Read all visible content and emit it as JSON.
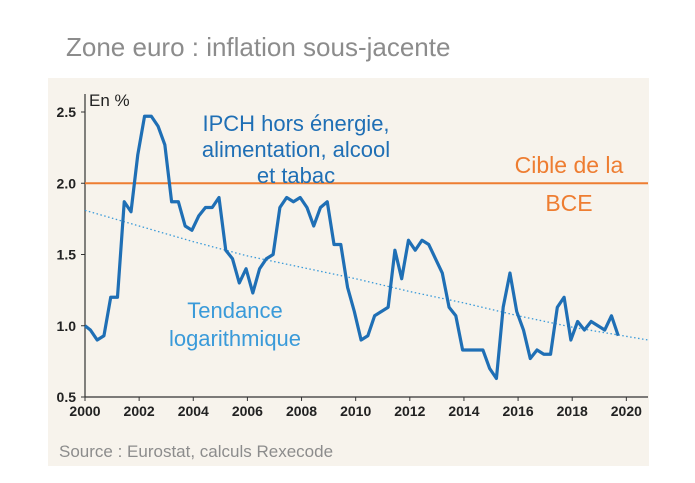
{
  "title": "Zone euro : inflation sous-jacente",
  "source": "Source : Eurostat, calculs Rexecode",
  "colors": {
    "series": "#1f6fb5",
    "trend": "#3a9ad9",
    "target": "#ee7d31",
    "panel": "#f7f3ec"
  },
  "chart_data": {
    "type": "line",
    "ylabel": "En %",
    "xlim": [
      2000,
      2020.8
    ],
    "ylim": [
      0.5,
      2.5
    ],
    "xticks": [
      "2000",
      "2002",
      "2004",
      "2006",
      "2008",
      "2010",
      "2012",
      "2014",
      "2016",
      "2018",
      "2020"
    ],
    "yticks": [
      "0.5",
      "1.0",
      "1.5",
      "2.0",
      "2.5"
    ],
    "annotations": {
      "series_label": [
        "IPCH hors énergie,",
        "alimentation, alcool",
        "et tabac"
      ],
      "target_label": [
        "Cible de la",
        "BCE"
      ],
      "trend_label": [
        "Tendance",
        "logarithmique"
      ]
    },
    "series": [
      {
        "name": "IPCH hors énergie, alimentation, alcool et tabac",
        "x": [
          2000.0,
          2000.2,
          2000.45,
          2000.7,
          2000.95,
          2001.2,
          2001.45,
          2001.7,
          2001.95,
          2002.2,
          2002.45,
          2002.7,
          2002.95,
          2003.2,
          2003.45,
          2003.7,
          2003.95,
          2004.2,
          2004.45,
          2004.7,
          2004.95,
          2005.2,
          2005.45,
          2005.7,
          2005.95,
          2006.2,
          2006.45,
          2006.7,
          2006.95,
          2007.2,
          2007.45,
          2007.7,
          2007.95,
          2008.2,
          2008.45,
          2008.7,
          2008.95,
          2009.2,
          2009.45,
          2009.7,
          2009.95,
          2010.2,
          2010.45,
          2010.7,
          2010.95,
          2011.2,
          2011.45,
          2011.7,
          2011.95,
          2012.2,
          2012.45,
          2012.7,
          2012.95,
          2013.2,
          2013.45,
          2013.7,
          2013.95,
          2014.2,
          2014.45,
          2014.7,
          2014.95,
          2015.2,
          2015.45,
          2015.7,
          2015.95,
          2016.2,
          2016.45,
          2016.7,
          2016.95,
          2017.2,
          2017.45,
          2017.7,
          2017.95,
          2018.2,
          2018.45,
          2018.7,
          2018.95,
          2019.2,
          2019.45,
          2019.7
        ],
        "values": [
          1.0,
          0.97,
          0.9,
          0.93,
          1.2,
          1.2,
          1.87,
          1.8,
          2.2,
          2.47,
          2.47,
          2.4,
          2.27,
          1.87,
          1.87,
          1.7,
          1.67,
          1.77,
          1.83,
          1.83,
          1.9,
          1.53,
          1.47,
          1.3,
          1.4,
          1.23,
          1.4,
          1.47,
          1.5,
          1.83,
          1.9,
          1.87,
          1.9,
          1.83,
          1.7,
          1.83,
          1.87,
          1.57,
          1.57,
          1.27,
          1.1,
          0.9,
          0.93,
          1.07,
          1.1,
          1.13,
          1.53,
          1.33,
          1.6,
          1.53,
          1.6,
          1.57,
          1.47,
          1.37,
          1.13,
          1.07,
          0.83,
          0.83,
          0.83,
          0.83,
          0.7,
          0.63,
          1.13,
          1.37,
          1.1,
          0.97,
          0.77,
          0.83,
          0.8,
          0.8,
          1.13,
          1.2,
          0.9,
          1.03,
          0.97,
          1.03,
          1.0,
          0.97,
          1.07,
          0.93
        ]
      },
      {
        "name": "Tendance logarithmique",
        "x": [
          2000.0,
          2002.0,
          2004.0,
          2006.0,
          2008.0,
          2010.0,
          2012.0,
          2014.0,
          2016.0,
          2018.0,
          2020.8
        ],
        "values": [
          1.81,
          1.7,
          1.59,
          1.49,
          1.41,
          1.33,
          1.24,
          1.16,
          1.07,
          0.99,
          0.9
        ]
      },
      {
        "name": "Cible de la BCE",
        "x": [
          2000.0,
          2020.8
        ],
        "values": [
          2.0,
          2.0
        ]
      }
    ]
  }
}
